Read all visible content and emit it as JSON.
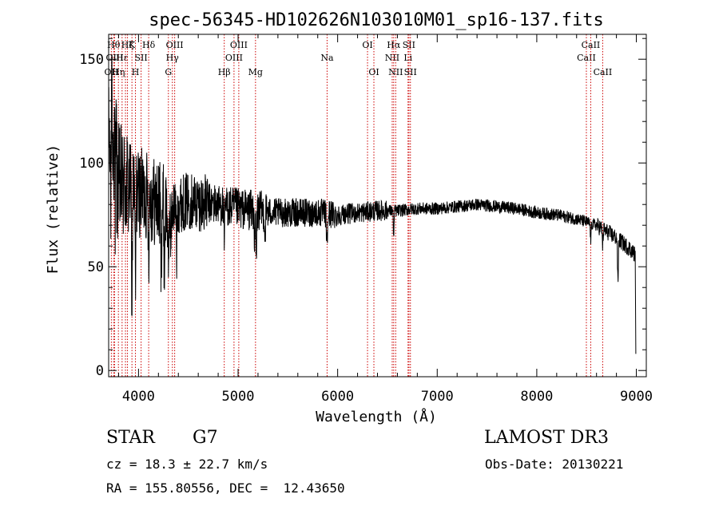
{
  "chart_data": {
    "type": "line",
    "title": "spec-56345-HD102626N103010M01_sp16-137.fits",
    "xlabel": "Wavelength (Å)",
    "ylabel": "Flux (relative)",
    "xlim": [
      3700,
      9100
    ],
    "ylim": [
      -3,
      162
    ],
    "x_ticks": [
      4000,
      5000,
      6000,
      7000,
      8000,
      9000
    ],
    "x_tick_labels": [
      "4000",
      "5000",
      "6000",
      "7000",
      "8000",
      "9000"
    ],
    "y_ticks": [
      0,
      50,
      100,
      150
    ],
    "y_tick_labels": [
      "0",
      "50",
      "100",
      "150"
    ],
    "grid": false,
    "line_color": "#000000",
    "marker_color": "#cc0000",
    "continuum": [
      [
        3700,
        95
      ],
      [
        3800,
        90
      ],
      [
        3900,
        88
      ],
      [
        4000,
        86
      ],
      [
        4100,
        84
      ],
      [
        4200,
        80
      ],
      [
        4300,
        78
      ],
      [
        4400,
        80
      ],
      [
        4500,
        82
      ],
      [
        4600,
        81
      ],
      [
        4800,
        80
      ],
      [
        5000,
        78
      ],
      [
        5200,
        77
      ],
      [
        5400,
        76
      ],
      [
        5600,
        76
      ],
      [
        5800,
        76
      ],
      [
        6000,
        75
      ],
      [
        6200,
        76
      ],
      [
        6400,
        77
      ],
      [
        6600,
        77
      ],
      [
        6800,
        78
      ],
      [
        7000,
        78
      ],
      [
        7200,
        79
      ],
      [
        7400,
        80
      ],
      [
        7600,
        79
      ],
      [
        7800,
        78
      ],
      [
        8000,
        76
      ],
      [
        8200,
        75
      ],
      [
        8400,
        73
      ],
      [
        8600,
        70
      ],
      [
        8800,
        64
      ],
      [
        8950,
        58
      ],
      [
        9000,
        55
      ]
    ],
    "absorption_dips": [
      {
        "x": 3934,
        "depth": 55
      },
      {
        "x": 3969,
        "depth": 50
      },
      {
        "x": 4102,
        "depth": 25
      },
      {
        "x": 4227,
        "depth": 30
      },
      {
        "x": 4260,
        "depth": 28
      },
      {
        "x": 4300,
        "depth": 40
      },
      {
        "x": 4325,
        "depth": 20
      },
      {
        "x": 4383,
        "depth": 25
      },
      {
        "x": 4861,
        "depth": 20
      },
      {
        "x": 5167,
        "depth": 18
      },
      {
        "x": 5183,
        "depth": 25
      },
      {
        "x": 5270,
        "depth": 12
      },
      {
        "x": 5890,
        "depth": 10
      },
      {
        "x": 5896,
        "depth": 10
      },
      {
        "x": 6563,
        "depth": 12
      },
      {
        "x": 8542,
        "depth": 8
      },
      {
        "x": 8662,
        "depth": 8
      },
      {
        "x": 8815,
        "depth": 22
      }
    ],
    "line_markers": [
      {
        "x": 3727,
        "label": "OII",
        "row": 3
      },
      {
        "x": 3750,
        "label": "Hθ",
        "row": 1
      },
      {
        "x": 3760,
        "label": "OIII",
        "row": 2
      },
      {
        "x": 3798,
        "label": "Hη",
        "row": 3
      },
      {
        "x": 3835,
        "label": "Hε",
        "row": 2
      },
      {
        "x": 3869,
        "label": "",
        "row": 0
      },
      {
        "x": 3889,
        "label": "Hζ",
        "row": 1
      },
      {
        "x": 3934,
        "label": "K",
        "row": 1
      },
      {
        "x": 3969,
        "label": "H",
        "row": 3
      },
      {
        "x": 4026,
        "label": "SII",
        "row": 2
      },
      {
        "x": 4102,
        "label": "Hδ",
        "row": 1
      },
      {
        "x": 4300,
        "label": "G",
        "row": 3
      },
      {
        "x": 4340,
        "label": "Hγ",
        "row": 2
      },
      {
        "x": 4363,
        "label": "OIII",
        "row": 1
      },
      {
        "x": 4861,
        "label": "Hβ",
        "row": 3
      },
      {
        "x": 4959,
        "label": "OIII",
        "row": 2
      },
      {
        "x": 5007,
        "label": "OIII",
        "row": 1
      },
      {
        "x": 5175,
        "label": "Mg",
        "row": 3
      },
      {
        "x": 5894,
        "label": "Na",
        "row": 2
      },
      {
        "x": 6300,
        "label": "OI",
        "row": 1
      },
      {
        "x": 6364,
        "label": "OI",
        "row": 3
      },
      {
        "x": 6548,
        "label": "NII",
        "row": 2
      },
      {
        "x": 6563,
        "label": "Hα",
        "row": 1
      },
      {
        "x": 6583,
        "label": "NII",
        "row": 3
      },
      {
        "x": 6707,
        "label": "Li",
        "row": 2
      },
      {
        "x": 6716,
        "label": "SII",
        "row": 1
      },
      {
        "x": 6731,
        "label": "SII",
        "row": 3
      },
      {
        "x": 8498,
        "label": "CaII",
        "row": 2
      },
      {
        "x": 8542,
        "label": "CaII",
        "row": 1
      },
      {
        "x": 8662,
        "label": "CaII",
        "row": 3
      }
    ]
  },
  "info": {
    "class": "STAR",
    "subclass": "G7",
    "survey": "LAMOST DR3",
    "cz": "cz = 18.3 ± 22.7 km/s",
    "obs_date": "Obs-Date: 20130221",
    "coords": "RA = 155.80556, DEC =  12.43650"
  }
}
